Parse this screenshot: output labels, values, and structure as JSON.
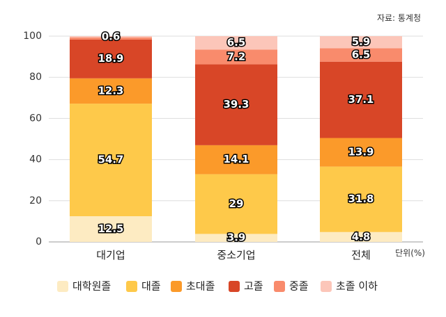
{
  "chart_data": {
    "type": "bar",
    "stacked": true,
    "source": "자료: 통계청",
    "unit": "단위(%)",
    "categories": [
      "대기업",
      "중소기업",
      "전체"
    ],
    "ylim": [
      0,
      100
    ],
    "yticks": [
      "0",
      "20",
      "40",
      "60",
      "80",
      "100"
    ],
    "grid": true,
    "legend_position": "bottom",
    "series": [
      {
        "name": "대학원졸",
        "color": "#fdebc2",
        "values": [
          12.5,
          3.9,
          4.8
        ],
        "labels": [
          "12.5",
          "3.9",
          "4.8"
        ]
      },
      {
        "name": "대졸",
        "color": "#fec94a",
        "values": [
          54.7,
          29,
          31.8
        ],
        "labels": [
          "54.7",
          "29",
          "31.8"
        ]
      },
      {
        "name": "초대졸",
        "color": "#fb9a2a",
        "values": [
          12.3,
          14.1,
          13.9
        ],
        "labels": [
          "12.3",
          "14.1",
          "13.9"
        ]
      },
      {
        "name": "고졸",
        "color": "#d84627",
        "values": [
          18.9,
          39.3,
          37.1
        ],
        "labels": [
          "18.9",
          "39.3",
          "37.1"
        ]
      },
      {
        "name": "중졸",
        "color": "#f98b6c",
        "values": [
          1.0,
          7.2,
          6.5
        ],
        "labels": [
          "",
          "7.2",
          "6.5"
        ]
      },
      {
        "name": "초졸 이하",
        "color": "#fcc6b9",
        "values": [
          0.6,
          6.5,
          5.9
        ],
        "labels": [
          "0.6",
          "6.5",
          "5.9"
        ]
      }
    ]
  }
}
